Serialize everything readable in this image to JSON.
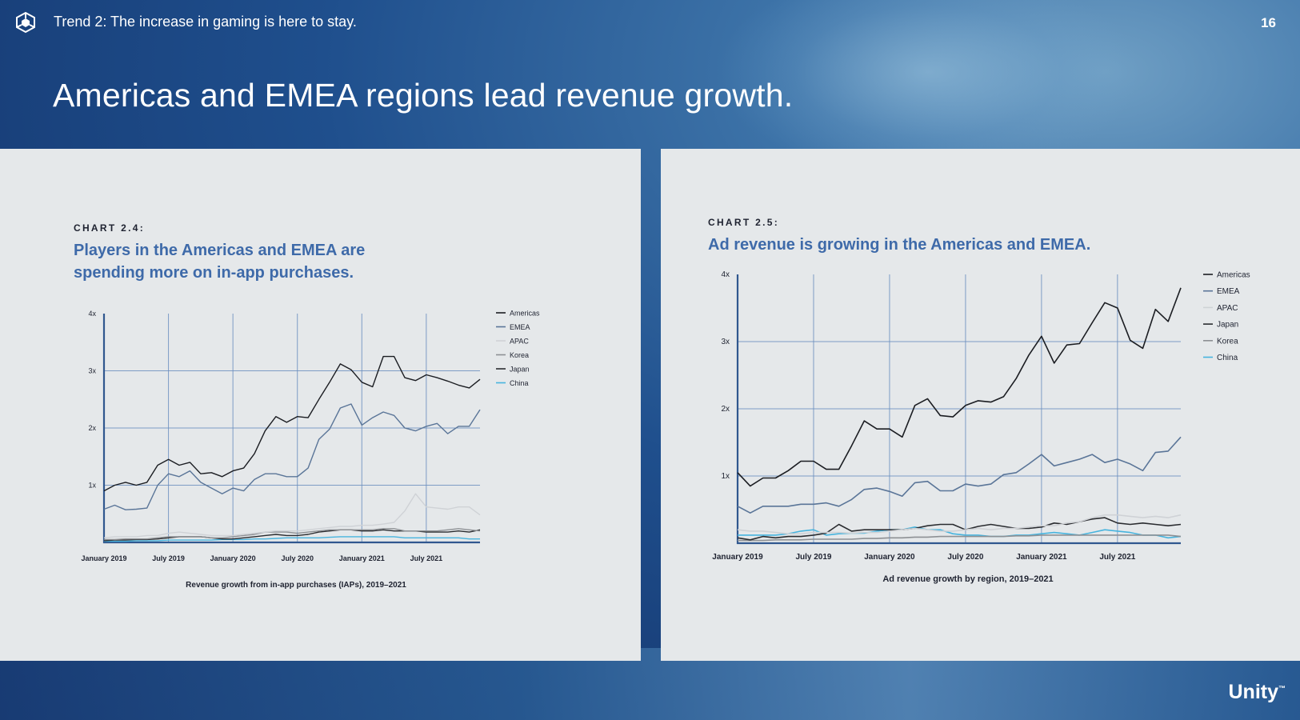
{
  "header": {
    "trend_label": "Trend 2: The increase in gaming is here to stay.",
    "page_number": "16"
  },
  "headline": "Americas and EMEA regions lead revenue growth.",
  "brand": "Unity",
  "brand_mark": "™",
  "colors": {
    "americas": "#1b1d22",
    "emea": "#5a7598",
    "apac": "#cfd2d6",
    "korea": "#8d9094",
    "japan": "#2a2c30",
    "china": "#47b4de",
    "grid": "#6b8fbf",
    "axis": "#30578f"
  },
  "charts": [
    {
      "label": "CHART 2.4:",
      "title_lines": [
        "Players in the Americas and EMEA are",
        "spending more on in-app purchases."
      ]
    },
    {
      "label": "CHART 2.5:",
      "title_lines": [
        "Ad revenue is growing in the Americas and EMEA."
      ]
    }
  ],
  "chart_data": [
    {
      "type": "line",
      "title": "Players in the Americas and EMEA are spending more on in-app purchases.",
      "caption": "Revenue growth from in-app purchases (IAPs), 2019–2021",
      "xlabel": "",
      "ylabel": "",
      "x_tick_labels": [
        "January 2019",
        "July 2019",
        "January 2020",
        "July 2020",
        "January 2021",
        "July 2021"
      ],
      "y_tick_labels": [
        "1x",
        "2x",
        "3x",
        "4x"
      ],
      "ylim": [
        0,
        4
      ],
      "x_count": 36,
      "legend_order": [
        "Americas",
        "EMEA",
        "APAC",
        "Korea",
        "Japan",
        "China"
      ],
      "series": [
        {
          "name": "Americas",
          "color_key": "americas",
          "values": [
            0.9,
            1.0,
            1.05,
            1.0,
            1.05,
            1.35,
            1.45,
            1.35,
            1.4,
            1.2,
            1.22,
            1.15,
            1.25,
            1.3,
            1.55,
            1.95,
            2.2,
            2.1,
            2.2,
            2.18,
            2.5,
            2.8,
            3.12,
            3.02,
            2.8,
            2.72,
            3.25,
            3.25,
            2.88,
            2.83,
            2.93,
            2.88,
            2.82,
            2.75,
            2.7,
            2.85
          ]
        },
        {
          "name": "EMEA",
          "color_key": "emea",
          "values": [
            0.58,
            0.65,
            0.57,
            0.58,
            0.6,
            1.0,
            1.2,
            1.15,
            1.25,
            1.05,
            0.95,
            0.85,
            0.95,
            0.9,
            1.1,
            1.2,
            1.2,
            1.15,
            1.15,
            1.3,
            1.8,
            1.98,
            2.35,
            2.42,
            2.05,
            2.18,
            2.28,
            2.22,
            2.0,
            1.95,
            2.03,
            2.08,
            1.9,
            2.03,
            2.03,
            2.32
          ]
        },
        {
          "name": "APAC",
          "color_key": "apac",
          "values": [
            0.08,
            0.1,
            0.1,
            0.1,
            0.12,
            0.12,
            0.16,
            0.18,
            0.16,
            0.14,
            0.12,
            0.12,
            0.12,
            0.14,
            0.16,
            0.18,
            0.2,
            0.2,
            0.2,
            0.22,
            0.24,
            0.26,
            0.28,
            0.28,
            0.3,
            0.3,
            0.32,
            0.35,
            0.55,
            0.85,
            0.62,
            0.6,
            0.58,
            0.62,
            0.62,
            0.48
          ]
        },
        {
          "name": "Korea",
          "color_key": "korea",
          "values": [
            0.05,
            0.05,
            0.06,
            0.06,
            0.06,
            0.08,
            0.1,
            0.1,
            0.1,
            0.1,
            0.08,
            0.08,
            0.1,
            0.12,
            0.14,
            0.18,
            0.18,
            0.18,
            0.16,
            0.18,
            0.2,
            0.22,
            0.22,
            0.22,
            0.22,
            0.22,
            0.24,
            0.24,
            0.2,
            0.2,
            0.2,
            0.2,
            0.22,
            0.24,
            0.22,
            0.2
          ]
        },
        {
          "name": "Japan",
          "color_key": "japan",
          "values": [
            0.03,
            0.04,
            0.04,
            0.05,
            0.05,
            0.06,
            0.08,
            0.1,
            0.1,
            0.1,
            0.08,
            0.06,
            0.06,
            0.08,
            0.1,
            0.12,
            0.14,
            0.12,
            0.12,
            0.14,
            0.18,
            0.2,
            0.22,
            0.22,
            0.2,
            0.2,
            0.22,
            0.2,
            0.2,
            0.2,
            0.18,
            0.18,
            0.18,
            0.2,
            0.18,
            0.22
          ]
        },
        {
          "name": "China",
          "color_key": "china",
          "values": [
            0.02,
            0.02,
            0.02,
            0.03,
            0.03,
            0.03,
            0.04,
            0.04,
            0.04,
            0.04,
            0.04,
            0.05,
            0.05,
            0.05,
            0.06,
            0.06,
            0.07,
            0.08,
            0.08,
            0.08,
            0.08,
            0.09,
            0.1,
            0.1,
            0.1,
            0.1,
            0.1,
            0.1,
            0.08,
            0.08,
            0.08,
            0.08,
            0.08,
            0.08,
            0.06,
            0.06
          ]
        }
      ]
    },
    {
      "type": "line",
      "title": "Ad revenue is growing in the Americas and EMEA.",
      "caption": "Ad revenue growth by region, 2019–2021",
      "xlabel": "",
      "ylabel": "",
      "x_tick_labels": [
        "January 2019",
        "July 2019",
        "January 2020",
        "July 2020",
        "January 2021",
        "July 2021"
      ],
      "y_tick_labels": [
        "1x",
        "2x",
        "3x",
        "4x"
      ],
      "ylim": [
        0,
        4
      ],
      "x_count": 36,
      "legend_order": [
        "Americas",
        "EMEA",
        "APAC",
        "Japan",
        "Korea",
        "China"
      ],
      "series": [
        {
          "name": "Americas",
          "color_key": "americas",
          "values": [
            1.05,
            0.85,
            0.97,
            0.97,
            1.08,
            1.22,
            1.22,
            1.1,
            1.1,
            1.45,
            1.82,
            1.7,
            1.7,
            1.58,
            2.05,
            2.15,
            1.9,
            1.88,
            2.05,
            2.12,
            2.1,
            2.18,
            2.45,
            2.8,
            3.08,
            2.68,
            2.95,
            2.97,
            3.28,
            3.58,
            3.5,
            3.02,
            2.9,
            3.48,
            3.3,
            3.8
          ]
        },
        {
          "name": "EMEA",
          "color_key": "emea",
          "values": [
            0.55,
            0.45,
            0.55,
            0.55,
            0.55,
            0.58,
            0.58,
            0.6,
            0.55,
            0.65,
            0.8,
            0.82,
            0.77,
            0.7,
            0.9,
            0.92,
            0.78,
            0.78,
            0.88,
            0.85,
            0.88,
            1.02,
            1.05,
            1.18,
            1.32,
            1.15,
            1.2,
            1.25,
            1.32,
            1.2,
            1.25,
            1.18,
            1.08,
            1.35,
            1.37,
            1.58
          ]
        },
        {
          "name": "APAC",
          "color_key": "apac",
          "values": [
            0.2,
            0.18,
            0.18,
            0.16,
            0.14,
            0.14,
            0.16,
            0.16,
            0.16,
            0.15,
            0.16,
            0.16,
            0.18,
            0.2,
            0.22,
            0.2,
            0.18,
            0.18,
            0.2,
            0.22,
            0.2,
            0.22,
            0.22,
            0.24,
            0.26,
            0.26,
            0.3,
            0.32,
            0.38,
            0.42,
            0.42,
            0.4,
            0.38,
            0.4,
            0.38,
            0.42
          ]
        },
        {
          "name": "Japan",
          "color_key": "japan",
          "values": [
            0.08,
            0.05,
            0.1,
            0.08,
            0.1,
            0.1,
            0.12,
            0.15,
            0.28,
            0.18,
            0.2,
            0.2,
            0.2,
            0.2,
            0.22,
            0.26,
            0.28,
            0.28,
            0.2,
            0.25,
            0.28,
            0.25,
            0.22,
            0.22,
            0.24,
            0.3,
            0.28,
            0.32,
            0.36,
            0.38,
            0.3,
            0.28,
            0.3,
            0.28,
            0.26,
            0.28
          ]
        },
        {
          "name": "Korea",
          "color_key": "korea",
          "values": [
            0.04,
            0.04,
            0.04,
            0.05,
            0.05,
            0.05,
            0.06,
            0.06,
            0.06,
            0.06,
            0.07,
            0.07,
            0.08,
            0.08,
            0.09,
            0.09,
            0.1,
            0.1,
            0.1,
            0.1,
            0.1,
            0.1,
            0.11,
            0.11,
            0.12,
            0.12,
            0.12,
            0.12,
            0.12,
            0.12,
            0.12,
            0.12,
            0.12,
            0.12,
            0.12,
            0.1
          ]
        },
        {
          "name": "China",
          "color_key": "china",
          "values": [
            0.12,
            0.12,
            0.12,
            0.12,
            0.14,
            0.18,
            0.2,
            0.12,
            0.14,
            0.15,
            0.15,
            0.18,
            0.2,
            0.2,
            0.24,
            0.2,
            0.2,
            0.14,
            0.12,
            0.12,
            0.1,
            0.1,
            0.12,
            0.12,
            0.14,
            0.16,
            0.14,
            0.12,
            0.16,
            0.2,
            0.18,
            0.16,
            0.12,
            0.12,
            0.08,
            0.1
          ]
        }
      ]
    }
  ]
}
